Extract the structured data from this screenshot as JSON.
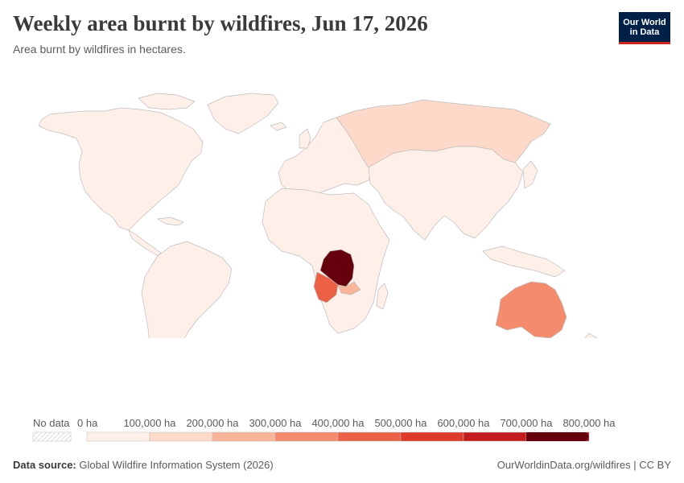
{
  "header": {
    "title": "Weekly area burnt by wildfires, Jun 17, 2026",
    "subtitle": "Area burnt by wildfires in hectares."
  },
  "logo": {
    "line1": "Our World",
    "line2": "in Data"
  },
  "legend": {
    "no_data_label": "No data",
    "bins": [
      {
        "label": "0 ha",
        "color": "#fef0e8"
      },
      {
        "label": "100,000 ha",
        "color": "#fcd9c8"
      },
      {
        "label": "200,000 ha",
        "color": "#f9b59a"
      },
      {
        "label": "300,000 ha",
        "color": "#f48b6c"
      },
      {
        "label": "400,000 ha",
        "color": "#ec6146"
      },
      {
        "label": "500,000 ha",
        "color": "#de3a2a"
      },
      {
        "label": "600,000 ha",
        "color": "#c41c1c"
      },
      {
        "label": "700,000 ha",
        "color": "#9a0f14"
      },
      {
        "label": "800,000 ha",
        "color": "#67000d"
      }
    ]
  },
  "footer": {
    "source_label": "Data source:",
    "source_text": "Global Wildfire Information System (2026)",
    "right_text": "OurWorldinData.org/wildfires | CC BY"
  },
  "map_data": {
    "regions": [
      {
        "name": "North America",
        "fill": "#fef0e8"
      },
      {
        "name": "Greenland",
        "fill": "#fef0e8"
      },
      {
        "name": "South America",
        "fill": "#fef0e8"
      },
      {
        "name": "Europe",
        "fill": "#fef0e8"
      },
      {
        "name": "Russia",
        "fill": "#fcd9c8"
      },
      {
        "name": "Asia",
        "fill": "#fef0e8"
      },
      {
        "name": "Africa",
        "fill": "#fef0e8"
      },
      {
        "name": "Democratic Republic of Congo",
        "fill": "#67000d"
      },
      {
        "name": "Angola",
        "fill": "#ec6146"
      },
      {
        "name": "Zambia",
        "fill": "#f9b59a"
      },
      {
        "name": "Australia",
        "fill": "#f48b6c"
      }
    ]
  }
}
